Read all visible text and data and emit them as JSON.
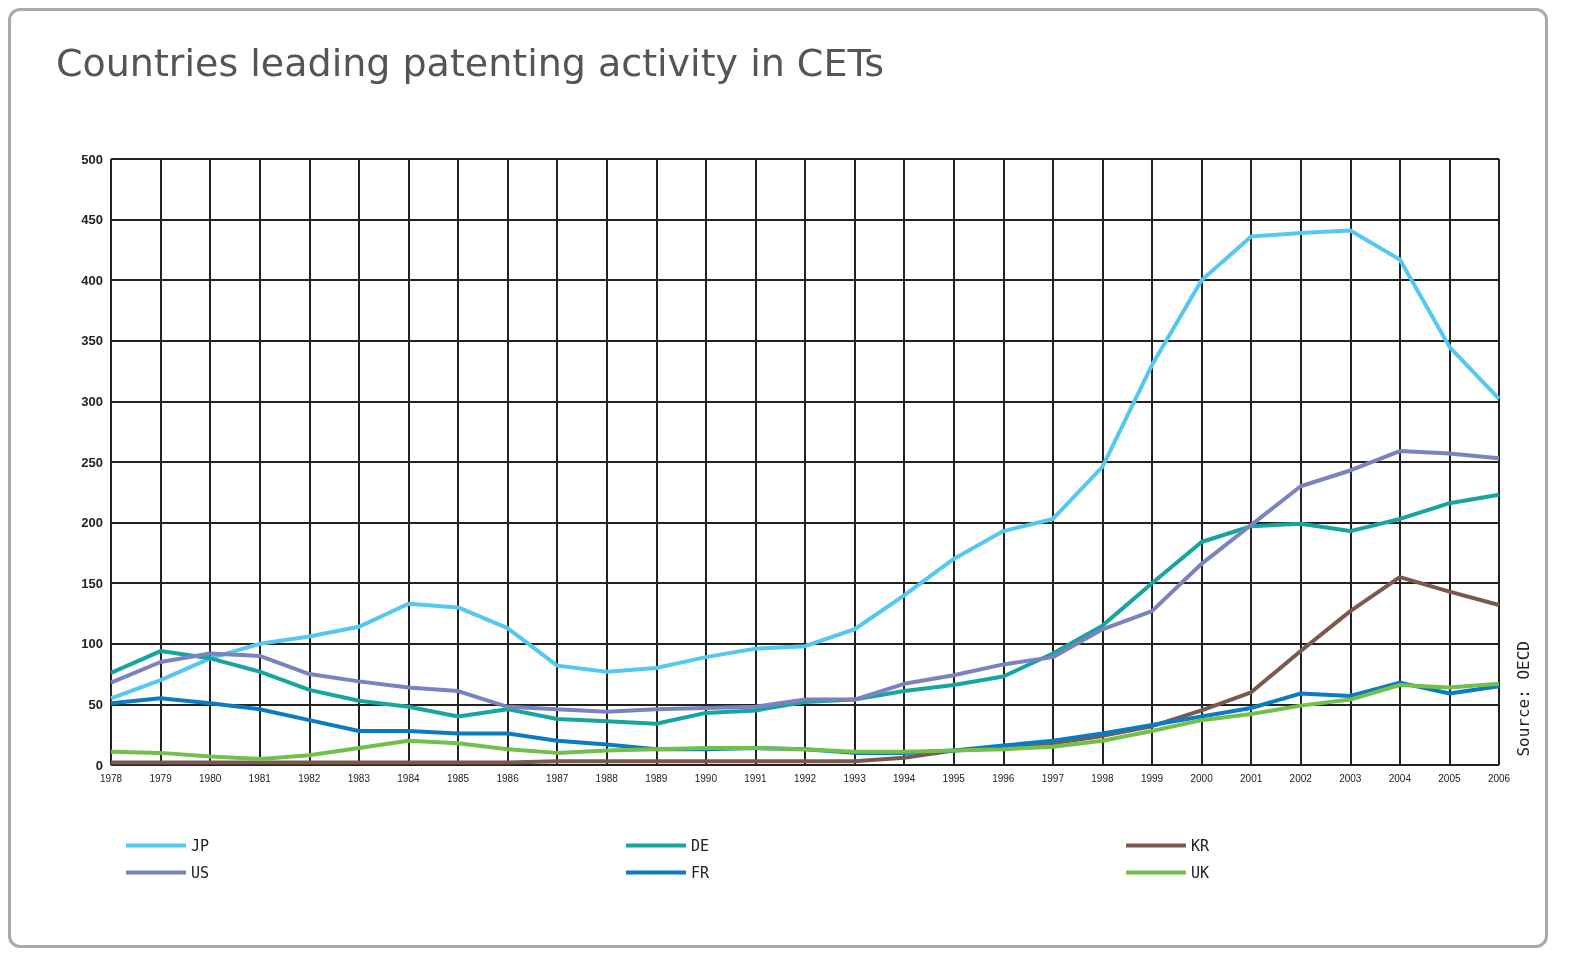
{
  "chart_data": {
    "type": "line",
    "title": "Countries leading patenting activity in CETs",
    "categories": [
      "1978",
      "1979",
      "1980",
      "1981",
      "1982",
      "1983",
      "1984",
      "1985",
      "1986",
      "1987",
      "1988",
      "1989",
      "1990",
      "1991",
      "1992",
      "1993",
      "1994",
      "1995",
      "1996",
      "1997",
      "1998",
      "1999",
      "2000",
      "2001",
      "2002",
      "2003",
      "2004",
      "2005",
      "2006"
    ],
    "series": [
      {
        "name": "JP",
        "color": "#55c8f0",
        "values": [
          55,
          70,
          88,
          100,
          106,
          114,
          133,
          130,
          113,
          82,
          77,
          80,
          89,
          96,
          98,
          112,
          140,
          170,
          193,
          203,
          246,
          330,
          400,
          436,
          439,
          441,
          417,
          345,
          302
        ]
      },
      {
        "name": "DE",
        "color": "#17a5a0",
        "values": [
          76,
          94,
          88,
          77,
          62,
          53,
          48,
          40,
          46,
          38,
          36,
          34,
          43,
          45,
          52,
          54,
          61,
          66,
          73,
          92,
          115,
          150,
          184,
          197,
          199,
          193,
          203,
          216,
          223
        ]
      },
      {
        "name": "KR",
        "color": "#7a5a4e",
        "values": [
          2,
          2,
          2,
          2,
          2,
          2,
          2,
          2,
          2,
          3,
          3,
          3,
          3,
          3,
          3,
          3,
          6,
          12,
          14,
          18,
          24,
          32,
          45,
          60,
          94,
          127,
          155,
          143,
          132
        ]
      },
      {
        "name": "US",
        "color": "#7b82c0",
        "values": [
          68,
          85,
          92,
          90,
          75,
          69,
          64,
          61,
          48,
          46,
          44,
          46,
          47,
          48,
          54,
          54,
          67,
          74,
          83,
          89,
          112,
          127,
          166,
          198,
          230,
          243,
          259,
          257,
          253
        ]
      },
      {
        "name": "FR",
        "color": "#0a7cc4",
        "values": [
          51,
          55,
          51,
          46,
          37,
          28,
          28,
          26,
          26,
          20,
          17,
          13,
          13,
          14,
          13,
          10,
          10,
          12,
          16,
          20,
          26,
          33,
          40,
          47,
          59,
          57,
          68,
          59,
          65
        ]
      },
      {
        "name": "UK",
        "color": "#72c04a",
        "values": [
          11,
          10,
          7,
          5,
          8,
          14,
          20,
          18,
          13,
          10,
          12,
          13,
          14,
          14,
          13,
          11,
          11,
          12,
          13,
          15,
          20,
          28,
          37,
          42,
          49,
          54,
          66,
          64,
          67
        ]
      }
    ],
    "ylim": [
      0,
      500
    ],
    "yticks": [
      0,
      50,
      100,
      150,
      200,
      250,
      300,
      350,
      400,
      450,
      500
    ],
    "grid": true,
    "legend": "bottom",
    "marker": "none",
    "line_style": "solid",
    "annotations": [
      "Source: OECD"
    ]
  }
}
